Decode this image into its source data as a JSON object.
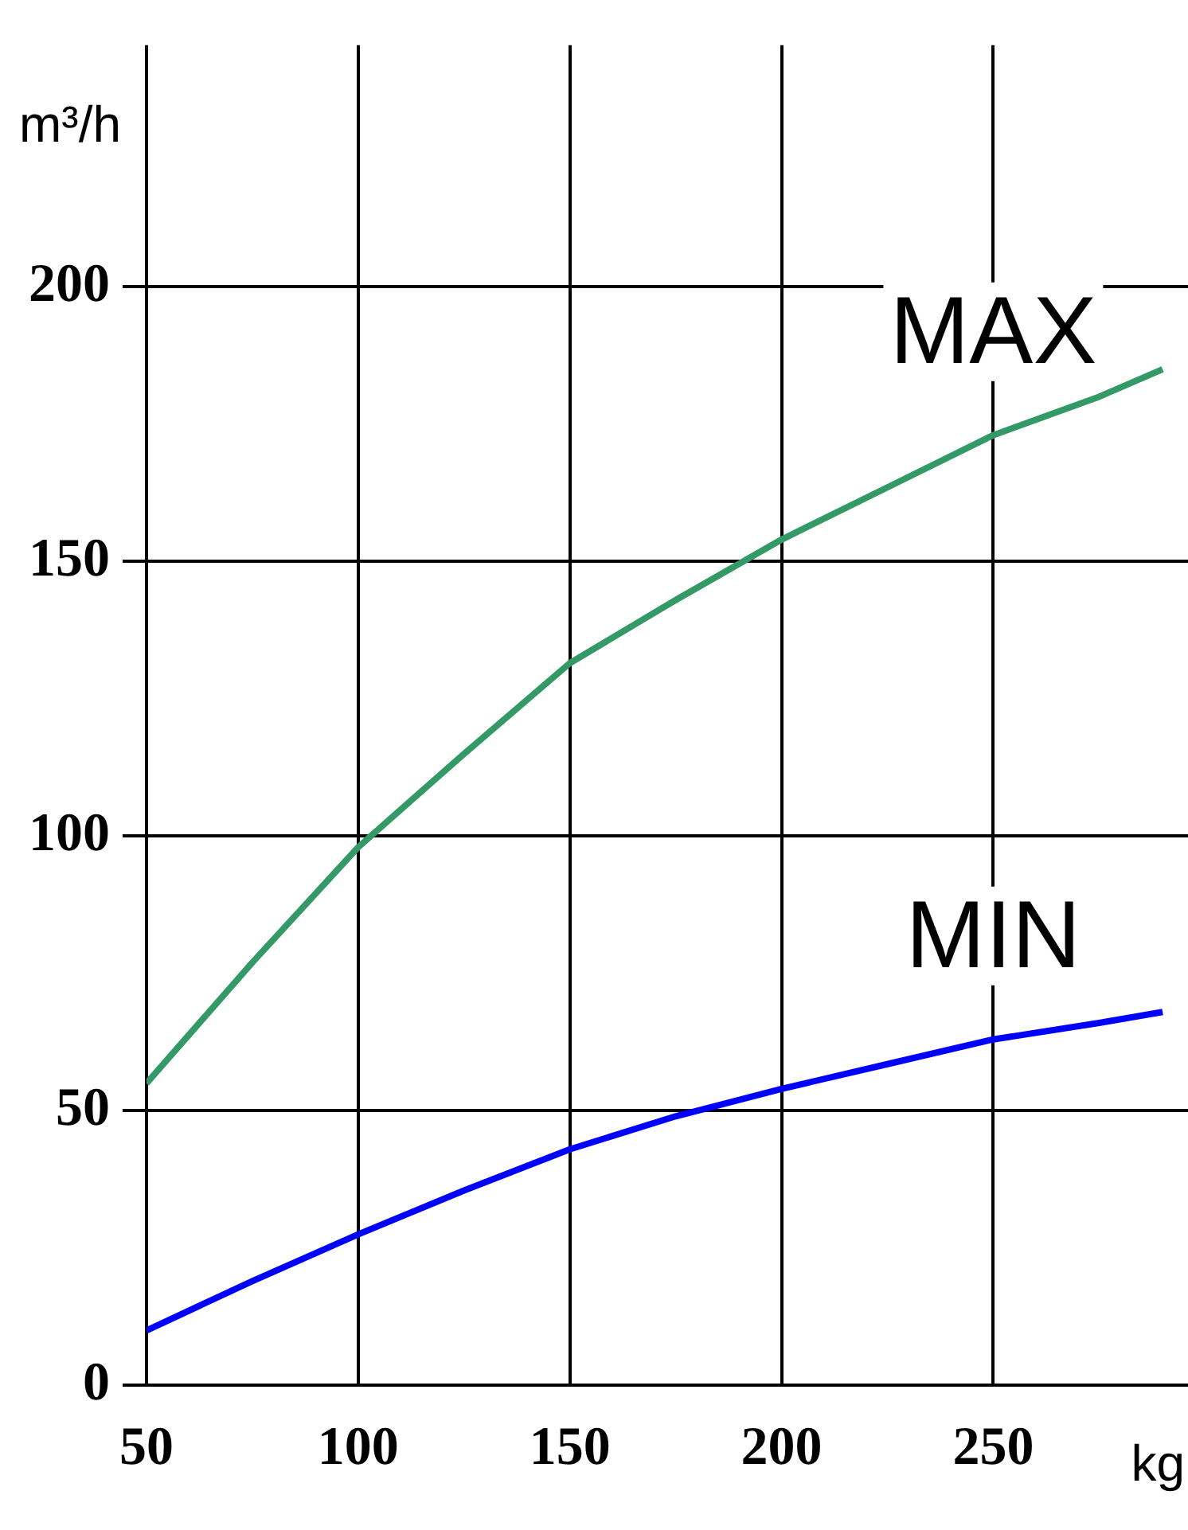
{
  "chart_data": {
    "type": "line",
    "xlabel": "kg",
    "ylabel": "m³/h",
    "xlim": [
      50,
      296
    ],
    "xticks": [
      50,
      100,
      150,
      200,
      250
    ],
    "ylim": [
      0,
      244
    ],
    "yticks": [
      0,
      50,
      100,
      150,
      200
    ],
    "grid": true,
    "legend": false,
    "marker": "none",
    "line_style": "solid",
    "series": [
      {
        "name": "MAX",
        "color": "#339966",
        "x": [
          50,
          75,
          100,
          125,
          150,
          175,
          200,
          225,
          250,
          275,
          290
        ],
        "values": [
          55,
          77,
          98,
          115,
          131.5,
          143,
          154,
          163.5,
          173,
          180,
          185
        ]
      },
      {
        "name": "MIN",
        "color": "#0000ff",
        "x": [
          50,
          75,
          100,
          125,
          150,
          175,
          200,
          225,
          250,
          275,
          290
        ],
        "values": [
          10,
          19,
          27.5,
          35.5,
          43,
          49,
          54,
          58.5,
          63,
          66,
          68
        ]
      }
    ]
  }
}
